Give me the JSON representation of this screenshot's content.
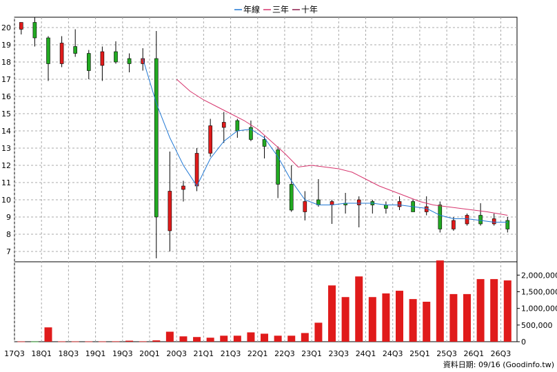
{
  "chart_data": {
    "type": "candlestick",
    "legend": {
      "placement": "top-center",
      "items": [
        {
          "label": "年線",
          "color": "#1f77d4"
        },
        {
          "label": "三年",
          "color": "#d6336c"
        },
        {
          "label": "十年",
          "color": "#8b1a4a"
        }
      ]
    },
    "up_color": "#e01b1b",
    "down_color": "#22aa22",
    "price_axis": {
      "ticks": [
        7,
        8,
        9,
        10,
        11,
        12,
        13,
        14,
        15,
        16,
        17,
        18,
        19,
        20
      ],
      "ylim": [
        6.4,
        20.6
      ]
    },
    "volume_axis": {
      "ticks": [
        0,
        500000,
        1000000,
        1500000,
        2000000
      ],
      "labels": [
        "0",
        "500,000",
        "1,000,000",
        "1,500,000",
        "2,000,000"
      ],
      "ylim": [
        0,
        2400000
      ]
    },
    "x_ticks": [
      {
        "q": 0,
        "label": "17Q3"
      },
      {
        "q": 2,
        "label": "18Q1"
      },
      {
        "q": 4,
        "label": "18Q3"
      },
      {
        "q": 6,
        "label": "19Q1"
      },
      {
        "q": 8,
        "label": "19Q3"
      },
      {
        "q": 10,
        "label": "20Q1"
      },
      {
        "q": 12,
        "label": "20Q3"
      },
      {
        "q": 14,
        "label": "21Q1"
      },
      {
        "q": 16,
        "label": "21Q3"
      },
      {
        "q": 18,
        "label": "22Q1"
      },
      {
        "q": 20,
        "label": "22Q3"
      },
      {
        "q": 22,
        "label": "23Q1"
      },
      {
        "q": 24,
        "label": "23Q3"
      },
      {
        "q": 26,
        "label": "24Q1"
      },
      {
        "q": 28,
        "label": "24Q3"
      },
      {
        "q": 30,
        "label": "25Q1"
      },
      {
        "q": 32,
        "label": "25Q3"
      },
      {
        "q": 34,
        "label": "26Q1"
      },
      {
        "q": 36,
        "label": "26Q3"
      }
    ],
    "candles": [
      {
        "q": 0.5,
        "open": 19.9,
        "high": 20.3,
        "low": 19.6,
        "close": 20.3
      },
      {
        "q": 1.5,
        "open": 20.3,
        "high": 20.6,
        "low": 18.9,
        "close": 19.4
      },
      {
        "q": 2.5,
        "open": 19.4,
        "high": 19.5,
        "low": 16.9,
        "close": 17.9
      },
      {
        "q": 3.5,
        "open": 17.9,
        "high": 19.5,
        "low": 17.7,
        "close": 19.1
      },
      {
        "q": 4.5,
        "open": 18.9,
        "high": 19.9,
        "low": 18.3,
        "close": 18.5
      },
      {
        "q": 5.5,
        "open": 18.5,
        "high": 18.7,
        "low": 17.0,
        "close": 17.5
      },
      {
        "q": 6.5,
        "open": 17.8,
        "high": 18.9,
        "low": 16.9,
        "close": 18.6
      },
      {
        "q": 7.5,
        "open": 18.6,
        "high": 19.2,
        "low": 17.9,
        "close": 18.0
      },
      {
        "q": 8.5,
        "open": 18.2,
        "high": 18.5,
        "low": 17.4,
        "close": 17.9
      },
      {
        "q": 9.5,
        "open": 17.9,
        "high": 18.8,
        "low": 17.5,
        "close": 18.2
      },
      {
        "q": 10.5,
        "open": 18.2,
        "high": 19.8,
        "low": 6.6,
        "close": 9.0
      },
      {
        "q": 11.5,
        "open": 8.2,
        "high": 12.8,
        "low": 7.0,
        "close": 10.5
      },
      {
        "q": 12.5,
        "open": 10.6,
        "high": 11.1,
        "low": 9.9,
        "close": 10.8
      },
      {
        "q": 13.5,
        "open": 10.8,
        "high": 13.0,
        "low": 10.5,
        "close": 12.7
      },
      {
        "q": 14.5,
        "open": 12.7,
        "high": 14.7,
        "low": 12.5,
        "close": 14.3
      },
      {
        "q": 15.5,
        "open": 14.2,
        "high": 15.1,
        "low": 13.3,
        "close": 14.5
      },
      {
        "q": 16.5,
        "open": 14.6,
        "high": 14.7,
        "low": 13.6,
        "close": 14.0
      },
      {
        "q": 17.5,
        "open": 14.2,
        "high": 14.6,
        "low": 13.4,
        "close": 13.5
      },
      {
        "q": 18.5,
        "open": 13.5,
        "high": 13.7,
        "low": 12.4,
        "close": 13.1
      },
      {
        "q": 19.5,
        "open": 12.9,
        "high": 13.1,
        "low": 10.1,
        "close": 10.9
      },
      {
        "q": 20.5,
        "open": 10.9,
        "high": 12.0,
        "low": 9.3,
        "close": 9.4
      },
      {
        "q": 21.5,
        "open": 9.3,
        "high": 10.5,
        "low": 8.8,
        "close": 9.9
      },
      {
        "q": 22.5,
        "open": 10.0,
        "high": 11.2,
        "low": 9.6,
        "close": 9.7
      },
      {
        "q": 23.5,
        "open": 9.7,
        "high": 10.0,
        "low": 8.6,
        "close": 9.9
      },
      {
        "q": 24.5,
        "open": 9.8,
        "high": 10.4,
        "low": 9.2,
        "close": 9.7
      },
      {
        "q": 25.5,
        "open": 9.7,
        "high": 10.2,
        "low": 8.4,
        "close": 10.0
      },
      {
        "q": 26.5,
        "open": 9.9,
        "high": 10.0,
        "low": 9.2,
        "close": 9.7
      },
      {
        "q": 27.5,
        "open": 9.7,
        "high": 9.9,
        "low": 9.2,
        "close": 9.5
      },
      {
        "q": 28.5,
        "open": 9.6,
        "high": 10.2,
        "low": 9.4,
        "close": 9.9
      },
      {
        "q": 29.5,
        "open": 9.9,
        "high": 10.0,
        "low": 9.3,
        "close": 9.3
      },
      {
        "q": 30.5,
        "open": 9.3,
        "high": 10.2,
        "low": 9.1,
        "close": 9.6
      },
      {
        "q": 31.5,
        "open": 9.7,
        "high": 9.9,
        "low": 8.1,
        "close": 8.3
      },
      {
        "q": 32.5,
        "open": 8.3,
        "high": 9.0,
        "low": 8.2,
        "close": 8.8
      },
      {
        "q": 33.5,
        "open": 8.6,
        "high": 9.2,
        "low": 8.5,
        "close": 9.1
      },
      {
        "q": 34.5,
        "open": 9.1,
        "high": 9.8,
        "low": 8.5,
        "close": 8.6
      },
      {
        "q": 35.5,
        "open": 8.6,
        "high": 9.2,
        "low": 8.5,
        "close": 8.9
      },
      {
        "q": 36.5,
        "open": 8.8,
        "high": 9.0,
        "low": 8.1,
        "close": 8.3
      }
    ],
    "volumes": [
      {
        "q": 0.5,
        "value": 8000,
        "color": "#e01b1b"
      },
      {
        "q": 1.5,
        "value": 5000,
        "color": "#22aa22"
      },
      {
        "q": 2.5,
        "value": 430000,
        "color": "#e01b1b"
      },
      {
        "q": 3.5,
        "value": 10000,
        "color": "#e01b1b"
      },
      {
        "q": 4.5,
        "value": 8000,
        "color": "#e01b1b"
      },
      {
        "q": 5.5,
        "value": 8000,
        "color": "#e01b1b"
      },
      {
        "q": 6.5,
        "value": 8000,
        "color": "#e01b1b"
      },
      {
        "q": 7.5,
        "value": 12000,
        "color": "#e01b1b"
      },
      {
        "q": 8.5,
        "value": 30000,
        "color": "#e01b1b"
      },
      {
        "q": 9.5,
        "value": 12000,
        "color": "#e01b1b"
      },
      {
        "q": 10.5,
        "value": 40000,
        "color": "#e01b1b"
      },
      {
        "q": 11.5,
        "value": 300000,
        "color": "#e01b1b"
      },
      {
        "q": 12.5,
        "value": 160000,
        "color": "#e01b1b"
      },
      {
        "q": 13.5,
        "value": 140000,
        "color": "#e01b1b"
      },
      {
        "q": 14.5,
        "value": 120000,
        "color": "#e01b1b"
      },
      {
        "q": 15.5,
        "value": 180000,
        "color": "#e01b1b"
      },
      {
        "q": 16.5,
        "value": 180000,
        "color": "#e01b1b"
      },
      {
        "q": 17.5,
        "value": 280000,
        "color": "#e01b1b"
      },
      {
        "q": 18.5,
        "value": 240000,
        "color": "#e01b1b"
      },
      {
        "q": 19.5,
        "value": 180000,
        "color": "#e01b1b"
      },
      {
        "q": 20.5,
        "value": 180000,
        "color": "#e01b1b"
      },
      {
        "q": 21.5,
        "value": 260000,
        "color": "#e01b1b"
      },
      {
        "q": 22.5,
        "value": 570000,
        "color": "#e01b1b"
      },
      {
        "q": 23.5,
        "value": 1690000,
        "color": "#e01b1b"
      },
      {
        "q": 24.5,
        "value": 1340000,
        "color": "#e01b1b"
      },
      {
        "q": 25.5,
        "value": 1960000,
        "color": "#e01b1b"
      },
      {
        "q": 26.5,
        "value": 1340000,
        "color": "#e01b1b"
      },
      {
        "q": 27.5,
        "value": 1450000,
        "color": "#e01b1b"
      },
      {
        "q": 28.5,
        "value": 1530000,
        "color": "#e01b1b"
      },
      {
        "q": 29.5,
        "value": 1280000,
        "color": "#e01b1b"
      },
      {
        "q": 30.5,
        "value": 1200000,
        "color": "#e01b1b"
      },
      {
        "q": 31.5,
        "value": 2440000,
        "color": "#e01b1b"
      },
      {
        "q": 32.5,
        "value": 1430000,
        "color": "#e01b1b"
      },
      {
        "q": 33.5,
        "value": 1430000,
        "color": "#e01b1b"
      },
      {
        "q": 34.5,
        "value": 1880000,
        "color": "#e01b1b"
      },
      {
        "q": 35.5,
        "value": 1880000,
        "color": "#e01b1b"
      },
      {
        "q": 36.5,
        "value": 1840000,
        "color": "#e01b1b"
      }
    ],
    "lines": [
      {
        "name": "年線",
        "color": "#1f77d4",
        "points": [
          [
            9.5,
            18.2
          ],
          [
            10.5,
            15.6
          ],
          [
            11.5,
            13.6
          ],
          [
            12.5,
            12.0
          ],
          [
            13.5,
            10.8
          ],
          [
            14.5,
            12.4
          ],
          [
            15.5,
            13.4
          ],
          [
            16.5,
            14.0
          ],
          [
            17.5,
            14.1
          ],
          [
            18.5,
            13.6
          ],
          [
            19.5,
            12.5
          ],
          [
            20.5,
            11.1
          ],
          [
            21.5,
            10.0
          ],
          [
            22.5,
            9.7
          ],
          [
            23.5,
            9.7
          ],
          [
            24.5,
            9.8
          ],
          [
            25.5,
            9.8
          ],
          [
            26.5,
            9.8
          ],
          [
            27.5,
            9.7
          ],
          [
            28.5,
            9.7
          ],
          [
            29.5,
            9.6
          ],
          [
            30.5,
            9.5
          ],
          [
            31.5,
            9.1
          ],
          [
            32.5,
            8.9
          ],
          [
            33.5,
            8.9
          ],
          [
            34.5,
            8.8
          ],
          [
            35.5,
            8.7
          ],
          [
            36.5,
            8.7
          ]
        ]
      },
      {
        "name": "三年",
        "color": "#d6336c",
        "points": [
          [
            12.0,
            17.0
          ],
          [
            13.0,
            16.3
          ],
          [
            14.0,
            15.8
          ],
          [
            15.0,
            15.4
          ],
          [
            16.0,
            15.0
          ],
          [
            17.0,
            14.6
          ],
          [
            18.0,
            14.1
          ],
          [
            19.0,
            13.4
          ],
          [
            20.0,
            12.7
          ],
          [
            21.0,
            11.9
          ],
          [
            22.0,
            12.0
          ],
          [
            23.0,
            11.9
          ],
          [
            24.0,
            11.8
          ],
          [
            25.0,
            11.6
          ],
          [
            26.0,
            11.2
          ],
          [
            27.0,
            10.8
          ],
          [
            28.0,
            10.5
          ],
          [
            29.0,
            10.2
          ],
          [
            30.0,
            9.9
          ],
          [
            31.0,
            9.7
          ],
          [
            32.0,
            9.6
          ],
          [
            33.0,
            9.5
          ],
          [
            34.0,
            9.4
          ],
          [
            35.0,
            9.3
          ],
          [
            36.5,
            9.1
          ]
        ]
      }
    ],
    "footer": "資料日期: 09/16  (Goodinfo.tw)"
  }
}
